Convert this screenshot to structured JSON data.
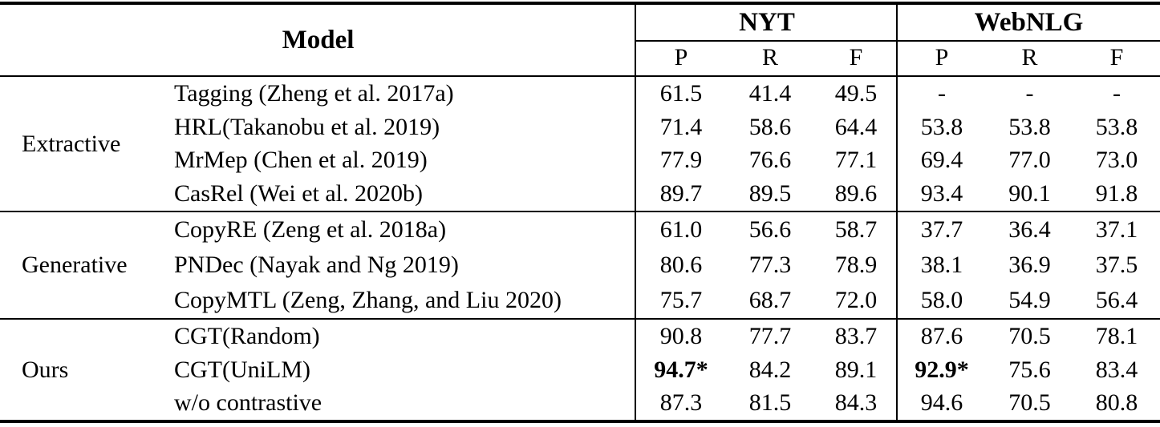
{
  "table": {
    "header": {
      "model_label": "Model",
      "dataset_groups": [
        "NYT",
        "WebNLG"
      ],
      "subcolumns": [
        "P",
        "R",
        "F",
        "P",
        "R",
        "F"
      ]
    },
    "sections": [
      {
        "group": "Extractive",
        "rows": [
          {
            "model": "Tagging (Zheng et al. 2017a)",
            "cells": [
              "61.5",
              "41.4",
              "49.5",
              "-",
              "-",
              "-"
            ]
          },
          {
            "model": "HRL(Takanobu et al. 2019)",
            "cells": [
              "71.4",
              "58.6",
              "64.4",
              "53.8",
              "53.8",
              "53.8"
            ]
          },
          {
            "model": "MrMep (Chen et al. 2019)",
            "cells": [
              "77.9",
              "76.6",
              "77.1",
              "69.4",
              "77.0",
              "73.0"
            ]
          },
          {
            "model": "CasRel (Wei et al. 2020b)",
            "cells": [
              "89.7",
              "89.5",
              "89.6",
              "93.4",
              "90.1",
              "91.8"
            ]
          }
        ]
      },
      {
        "group": "Generative",
        "rows": [
          {
            "model": "CopyRE (Zeng et al. 2018a)",
            "cells": [
              "61.0",
              "56.6",
              "58.7",
              "37.7",
              "36.4",
              "37.1"
            ]
          },
          {
            "model": "PNDec (Nayak and Ng 2019)",
            "cells": [
              "80.6",
              "77.3",
              "78.9",
              "38.1",
              "36.9",
              "37.5"
            ]
          },
          {
            "model": "CopyMTL (Zeng, Zhang, and Liu 2020)",
            "cells": [
              "75.7",
              "68.7",
              "72.0",
              "58.0",
              "54.9",
              "56.4"
            ]
          }
        ]
      },
      {
        "group": "Ours",
        "rows": [
          {
            "model": "CGT(Random)",
            "cells": [
              "90.8",
              "77.7",
              "83.7",
              "87.6",
              "70.5",
              "78.1"
            ]
          },
          {
            "model": "CGT(UniLM)",
            "cells": [
              "94.7*",
              "84.2",
              "89.1",
              "92.9*",
              "75.6",
              "83.4"
            ]
          },
          {
            "model": "w/o contrastive",
            "cells": [
              "87.3",
              "81.5",
              "84.3",
              "94.6",
              "70.5",
              "80.8"
            ]
          }
        ]
      }
    ],
    "colors": {
      "text": "#000000",
      "background": "#ffffff",
      "rule": "#000000"
    }
  }
}
